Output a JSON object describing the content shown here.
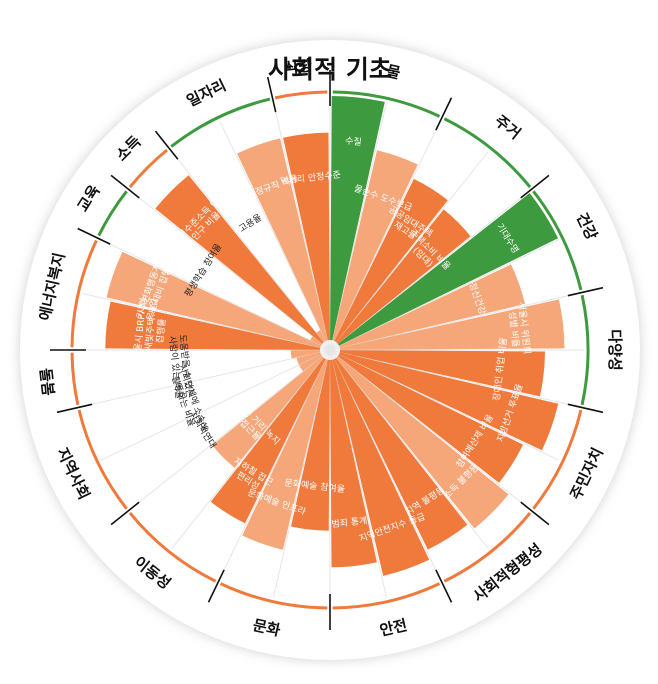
{
  "chart_data": {
    "type": "radial-bar",
    "title": "사회적 기초",
    "colors": {
      "dark": "#f07a3c",
      "light": "#f6a77a",
      "green": "#3d9a3f",
      "ring": "#111111",
      "ring_ok": "#3d9a3f",
      "ring_short": "#f07a3c",
      "disc": "#ffffff",
      "gridline": "#e6e6e6"
    },
    "value_scale": {
      "min": 0,
      "max": 1
    },
    "dimensions": [
      {
        "name": "물",
        "status": "ok",
        "indicators": [
          {
            "label": "수질",
            "value": 1.0,
            "status": "met",
            "tone": "green"
          },
          {
            "label": "물순수 도수보급",
            "value": 0.8,
            "status": "short",
            "tone": "light"
          }
        ]
      },
      {
        "name": "주거",
        "status": "ok",
        "indicators": [
          {
            "label": "공공임대주택 재고율",
            "value": 0.74,
            "status": "short",
            "tone": "dark"
          },
          {
            "label": "주택소비 비율 (임대)",
            "value": 0.7,
            "status": "short",
            "tone": "dark"
          }
        ]
      },
      {
        "name": "건강",
        "status": "ok",
        "indicators": [
          {
            "label": "기대수명",
            "value": 1.0,
            "status": "met",
            "tone": "green"
          },
          {
            "label": "정신건강",
            "value": 0.78,
            "status": "short",
            "tone": "light"
          }
        ]
      },
      {
        "name": "다양성",
        "status": "ok",
        "indicators": [
          {
            "label": "서울시 위원회 성별 비율",
            "value": 0.92,
            "status": "short",
            "tone": "light"
          },
          {
            "label": "장애인 취업 비율",
            "value": 0.84,
            "status": "short",
            "tone": "dark"
          }
        ]
      },
      {
        "name": "주민자치",
        "status": "short",
        "indicators": [
          {
            "label": "지방선거 투표율",
            "value": 0.92,
            "status": "short",
            "tone": "dark"
          },
          {
            "label": "참여예산제 비율",
            "value": 0.84,
            "status": "short",
            "tone": "dark"
          }
        ]
      },
      {
        "name": "사회적형평성",
        "status": "short",
        "indicators": [
          {
            "label": "소득 불평등",
            "value": 0.9,
            "status": "short",
            "tone": "light"
          },
          {
            "label": "지역 불평등",
            "value": 0.87,
            "status": "short",
            "tone": "dark"
          }
        ]
      },
      {
        "name": "안전",
        "status": "short",
        "indicators": [
          {
            "label": "지역안전지수 등급",
            "value": 0.91,
            "status": "short",
            "tone": "dark"
          },
          {
            "label": "범죄 통계",
            "value": 0.85,
            "status": "short",
            "tone": "dark"
          }
        ]
      },
      {
        "name": "문화",
        "status": "short",
        "indicators": [
          {
            "label": "문화예술 참여율",
            "value": 0.7,
            "status": "short",
            "tone": "dark"
          },
          {
            "label": "문화예술 인프라",
            "value": 0.8,
            "status": "short",
            "tone": "light"
          }
        ]
      },
      {
        "name": "이동성",
        "status": "short",
        "indicators": [
          {
            "label": "지하철 접근 편리성",
            "value": 0.75,
            "status": "short",
            "tone": "dark"
          },
          {
            "label": "10분 거리 녹지 접근율",
            "value": 0.58,
            "status": "short",
            "tone": "light"
          }
        ]
      },
      {
        "name": "지역사회",
        "status": "short",
        "indicators": [
          {
            "label": "사회적연대",
            "value": 0.1,
            "status": "short",
            "tone": "light"
          },
          {
            "label": "사회단체에 소속해 활동하는 비율",
            "value": 0.1,
            "status": "short",
            "tone": "light"
          }
        ]
      },
      {
        "name": "돌봄",
        "status": "short",
        "indicators": [
          {
            "label": "도움받을 수 있는 사람이 있는 비율",
            "value": 0.12,
            "status": "short",
            "tone": "light"
          }
        ]
      },
      {
        "name": "에너지복지",
        "status": "short",
        "indicators": [
          {
            "label": "서울시 BRP사업 및 새빛주택 사업 집행률",
            "value": 0.88,
            "status": "short",
            "tone": "dark"
          },
          {
            "label": "기후변화행동계획 목표 대비 집행률",
            "value": 0.9,
            "status": "short",
            "tone": "light"
          }
        ]
      },
      {
        "name": "교육",
        "status": "ok",
        "indicators": [
          {
            "label": "평생학습 참여율",
            "value": 0.05,
            "status": "short",
            "tone": "light"
          }
        ]
      },
      {
        "name": "소득",
        "status": "short",
        "indicators": [
          {
            "label": "최저수준소득 이하 인구 비율",
            "value": 0.88,
            "status": "short",
            "tone": "dark"
          }
        ]
      },
      {
        "name": "일자리",
        "status": "ok",
        "indicators": [
          {
            "label": "고용율",
            "value": 0.05,
            "status": "short",
            "tone": "light"
          },
          {
            "label": "비정규직 비율",
            "value": 0.85,
            "status": "short",
            "tone": "light"
          }
        ]
      },
      {
        "name": "식량",
        "status": "short",
        "indicators": [
          {
            "label": "먹거리 안정수준",
            "value": 0.85,
            "status": "short",
            "tone": "dark"
          }
        ]
      }
    ]
  }
}
